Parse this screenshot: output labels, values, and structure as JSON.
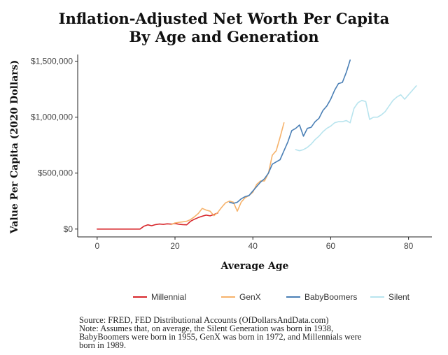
{
  "chart_data": {
    "type": "line",
    "title": [
      "Inflation-Adjusted Net Worth Per Capita",
      "By Age and Generation"
    ],
    "xlabel": "Average Age",
    "ylabel": "Value Per Capita (2020 Dollars)",
    "xlim": [
      -5,
      86
    ],
    "ylim": [
      -70000,
      1560000
    ],
    "x_ticks": [
      0,
      20,
      40,
      60,
      80
    ],
    "x_tick_labels": [
      "0",
      "20",
      "40",
      "60",
      "80"
    ],
    "y_ticks": [
      0,
      500000,
      1000000,
      1500000
    ],
    "y_tick_labels": [
      "$0",
      "$500,000",
      "$1,000,000",
      "$1,500,000"
    ],
    "grid": false,
    "legend_position": "bottom",
    "series": [
      {
        "name": "Millennial",
        "color": "#d7262b",
        "x": [
          0,
          2,
          5,
          8,
          11,
          12,
          13,
          14,
          15,
          16,
          17,
          18,
          19,
          20,
          21,
          22,
          23,
          24,
          25,
          26,
          27,
          28,
          29,
          30,
          31
        ],
        "y": [
          0,
          0,
          0,
          0,
          0,
          25000,
          38000,
          30000,
          40000,
          45000,
          42000,
          47000,
          44000,
          50000,
          43000,
          40000,
          38000,
          70000,
          88000,
          103000,
          115000,
          125000,
          118000,
          130000,
          145000
        ]
      },
      {
        "name": "GenX",
        "color": "#f6b26b",
        "x": [
          19,
          20,
          21,
          22,
          23,
          24,
          25,
          26,
          27,
          28,
          29,
          30,
          31,
          32,
          33,
          34,
          35,
          36,
          37,
          38,
          39,
          40,
          41,
          42,
          43,
          44,
          45,
          46,
          47,
          48
        ],
        "y": [
          40000,
          55000,
          60000,
          65000,
          70000,
          85000,
          110000,
          140000,
          185000,
          170000,
          160000,
          120000,
          150000,
          195000,
          235000,
          250000,
          240000,
          160000,
          240000,
          280000,
          300000,
          330000,
          400000,
          430000,
          430000,
          500000,
          660000,
          700000,
          820000,
          950000
        ]
      },
      {
        "name": "BabyBoomers",
        "color": "#4a7fb5",
        "x": [
          34,
          35,
          36,
          37,
          38,
          39,
          40,
          41,
          42,
          43,
          44,
          45,
          46,
          47,
          48,
          49,
          50,
          51,
          52,
          53,
          54,
          55,
          56,
          57,
          58,
          59,
          60,
          61,
          62,
          63,
          64,
          65
        ],
        "y": [
          240000,
          230000,
          240000,
          270000,
          290000,
          300000,
          340000,
          380000,
          420000,
          450000,
          500000,
          580000,
          600000,
          620000,
          700000,
          780000,
          880000,
          900000,
          930000,
          830000,
          900000,
          910000,
          960000,
          990000,
          1060000,
          1100000,
          1160000,
          1240000,
          1300000,
          1310000,
          1400000,
          1510000
        ]
      },
      {
        "name": "Silent",
        "color": "#b8e4ee",
        "x": [
          51,
          52,
          53,
          54,
          55,
          56,
          57,
          58,
          59,
          60,
          61,
          62,
          63,
          64,
          65,
          66,
          67,
          68,
          69,
          70,
          71,
          72,
          73,
          74,
          75,
          76,
          77,
          78,
          79,
          80,
          81,
          82
        ],
        "y": [
          710000,
          700000,
          710000,
          730000,
          760000,
          800000,
          830000,
          870000,
          900000,
          920000,
          950000,
          960000,
          960000,
          970000,
          950000,
          1080000,
          1130000,
          1150000,
          1140000,
          980000,
          1000000,
          1000000,
          1020000,
          1050000,
          1100000,
          1150000,
          1180000,
          1200000,
          1160000,
          1200000,
          1240000,
          1280000
        ]
      }
    ],
    "source_lines": [
      "Source:  FRED, FED Distributional Accounts (OfDollarsAndData.com)",
      "Note: Assumes that, on average, the Silent Generation was born in 1938,",
      "BabyBoomers were born in 1955, GenX was born in 1972, and Millennials were",
      "born in 1989."
    ]
  }
}
